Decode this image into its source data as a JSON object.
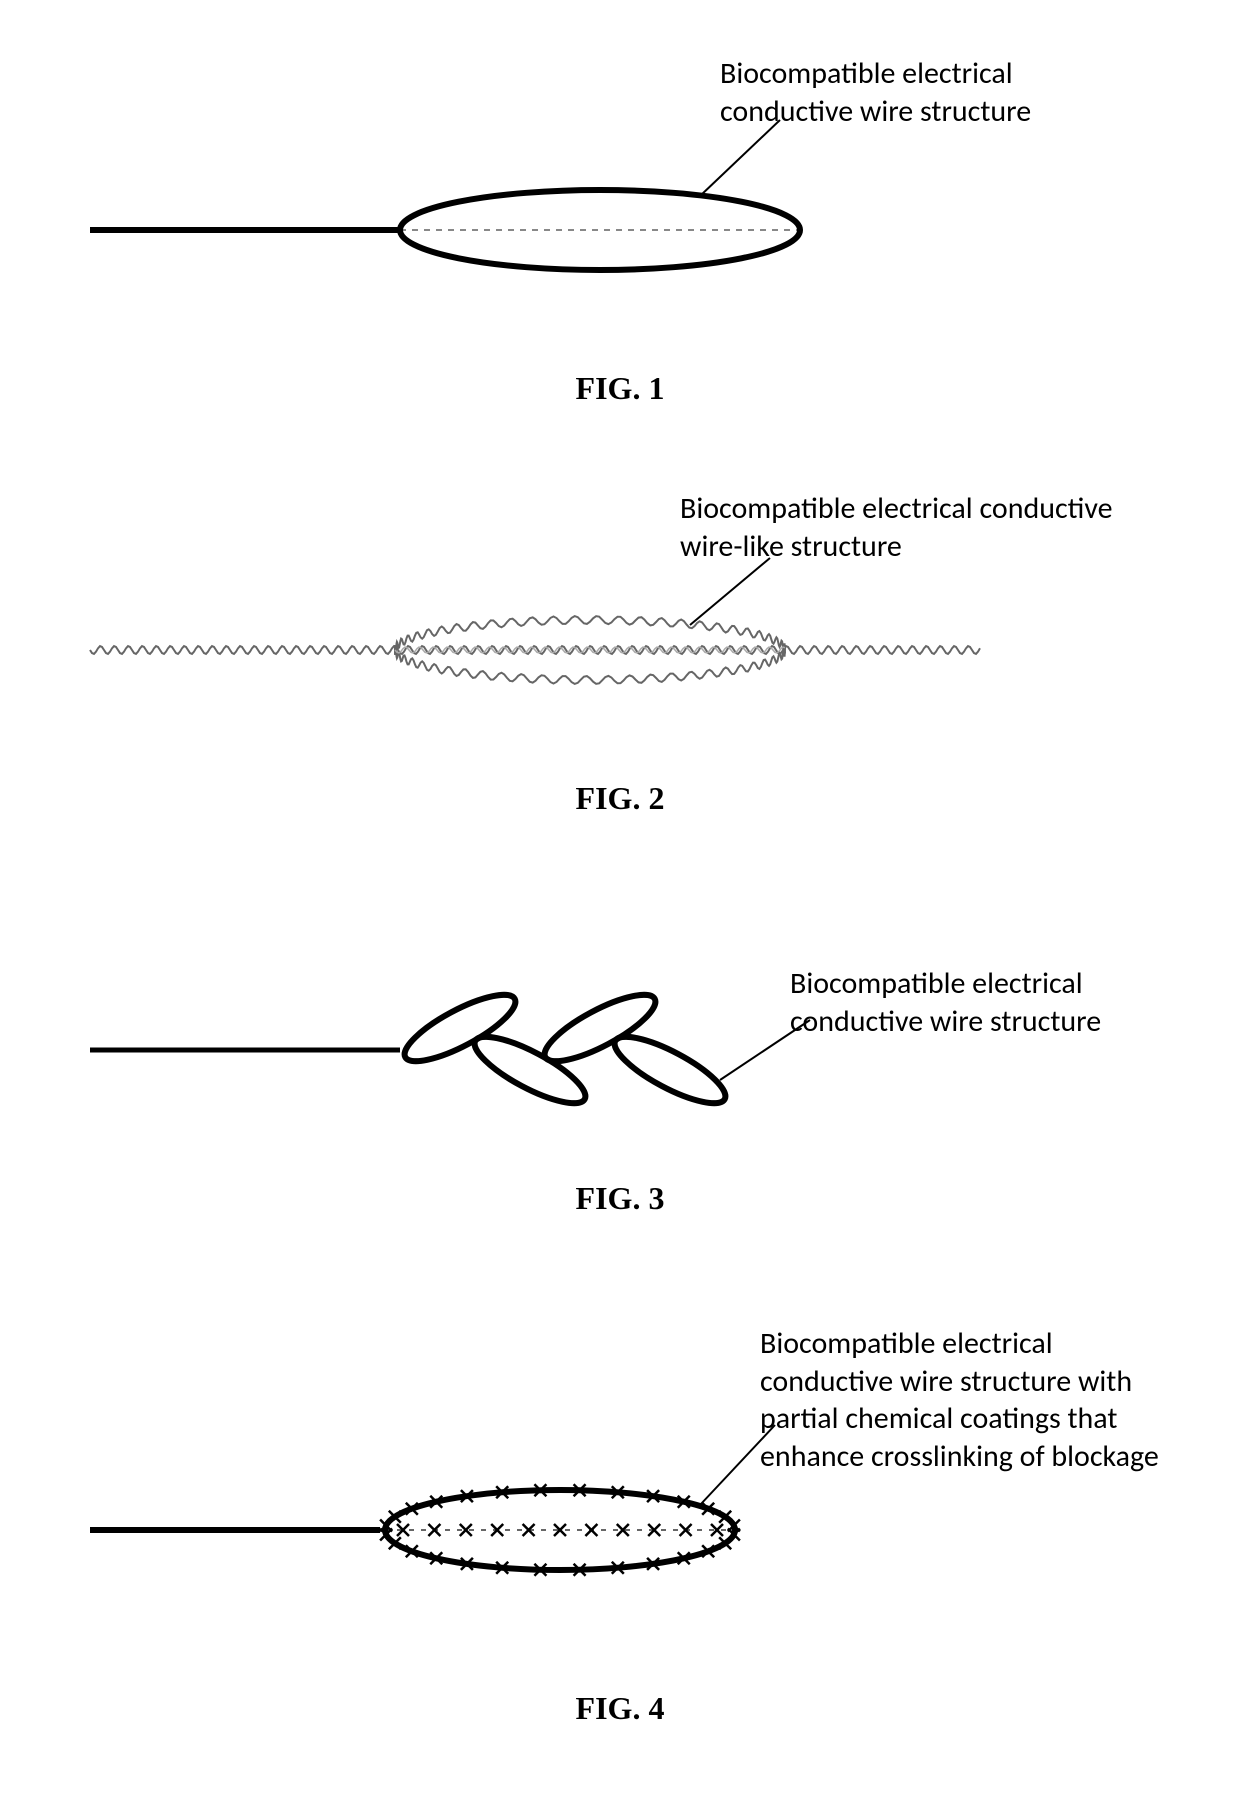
{
  "figures": {
    "fig1": {
      "caption": "FIG. 1",
      "label": "Biocompatible electrical conductive wire structure",
      "stroke": "#000000",
      "strokeWidth": 6,
      "dashStroke": "#888888",
      "labelLine": "#000000"
    },
    "fig2": {
      "caption": "FIG. 2",
      "label": "Biocompatible electrical conductive wire-like structure",
      "stroke": "#666666",
      "strokeWidth": 2,
      "labelLine": "#000000"
    },
    "fig3": {
      "caption": "FIG. 3",
      "label": "Biocompatible electrical conductive wire structure",
      "stroke": "#000000",
      "strokeWidth": 6,
      "labelLine": "#000000"
    },
    "fig4": {
      "caption": "FIG. 4",
      "label": "Biocompatible electrical conductive wire structure with partial chemical coatings that enhance crosslinking of blockage",
      "stroke": "#000000",
      "strokeWidth": 6,
      "dashStroke": "#666666",
      "markStroke": "#000000",
      "labelLine": "#000000"
    }
  },
  "layout": {
    "pageWidth": 1240,
    "pageHeight": 1797
  }
}
